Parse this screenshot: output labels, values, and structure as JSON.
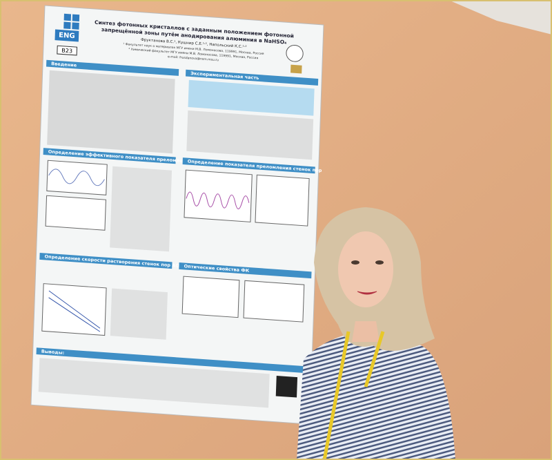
{
  "poster": {
    "logo": "ENG",
    "code": "B23",
    "title": [
      "Синтез фотонных кристаллов с заданным положением фотонной",
      "запрещённой зоны путём анодирования алюминия в NaHSO₄"
    ],
    "authors": "Фруктанова В.С.¹, Кушнир С.Е.¹˒², Напольский К.С.¹˒²",
    "affiliations": [
      "¹ Факультет наук о материалах МГУ имени М.В. Ломоносова, 119991, Москва, Россия",
      "² Химический факультет МГУ имени М.В. Ломоносова, 119991, Москва, Россия"
    ],
    "email": "e-mail: frusdanova@nsm.msu.ru",
    "sections": [
      "Введение",
      "Экспериментальная часть",
      "Определение эффективного показателя преломления",
      "Определение показателя преломления стенок пор",
      "Определение скорости растворения стенок пор АОА",
      "Оптические свойства ФК",
      "Выводы:"
    ]
  }
}
